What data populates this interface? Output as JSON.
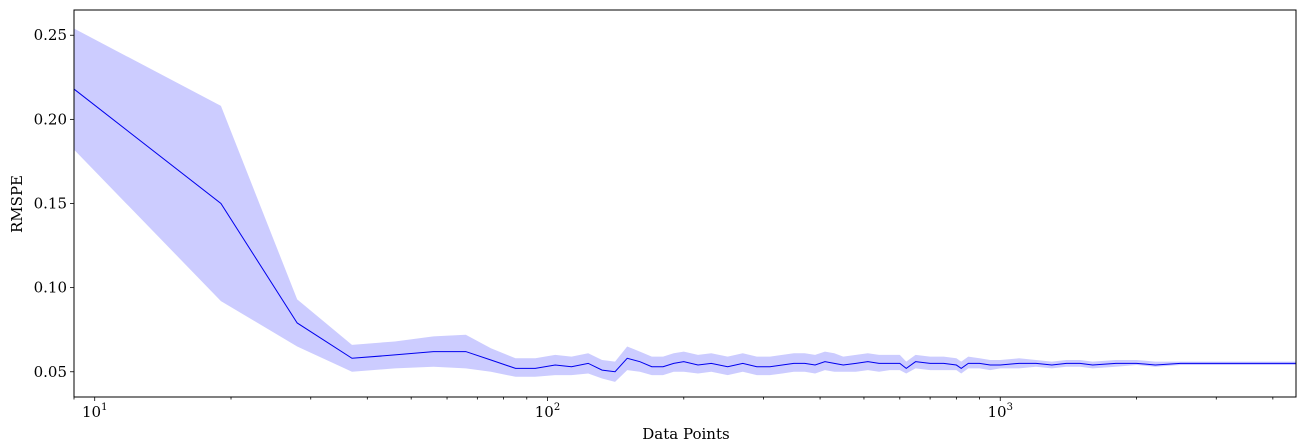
{
  "chart_data": {
    "type": "line",
    "title": "",
    "xlabel": "Data Points",
    "ylabel": "RMSPE",
    "x_scale": "log",
    "xlim": [
      9,
      4500
    ],
    "ylim": [
      0.035,
      0.265
    ],
    "grid": false,
    "legend": "none",
    "x_ticks": [
      {
        "value": 10,
        "base": "10",
        "exp": "1"
      },
      {
        "value": 100,
        "base": "10",
        "exp": "2"
      },
      {
        "value": 1000,
        "base": "10",
        "exp": "3"
      }
    ],
    "y_ticks": [
      {
        "value": 0.05,
        "label": "0.05"
      },
      {
        "value": 0.1,
        "label": "0.10"
      },
      {
        "value": 0.15,
        "label": "0.15"
      },
      {
        "value": 0.2,
        "label": "0.20"
      },
      {
        "value": 0.25,
        "label": "0.25"
      }
    ],
    "colors": {
      "line": "#0000ee",
      "band": "#ccccff"
    },
    "series": [
      {
        "x": [
          9,
          19,
          28,
          37,
          46,
          56,
          66,
          75,
          85,
          94,
          104,
          113,
          123,
          132,
          141,
          150,
          160,
          170,
          180,
          190,
          200,
          215,
          230,
          250,
          270,
          290,
          310,
          330,
          350,
          370,
          390,
          410,
          430,
          450,
          480,
          510,
          540,
          570,
          600,
          620,
          650,
          700,
          750,
          800,
          820,
          850,
          900,
          950,
          1000,
          1100,
          1200,
          1300,
          1400,
          1500,
          1600,
          1800,
          2000,
          2200,
          2500,
          2800,
          3200,
          3600,
          4000,
          4500
        ],
        "y": [
          0.218,
          0.15,
          0.079,
          0.058,
          0.06,
          0.062,
          0.062,
          0.057,
          0.052,
          0.052,
          0.054,
          0.053,
          0.055,
          0.051,
          0.05,
          0.058,
          0.056,
          0.053,
          0.053,
          0.055,
          0.056,
          0.054,
          0.055,
          0.053,
          0.055,
          0.053,
          0.053,
          0.054,
          0.055,
          0.055,
          0.054,
          0.056,
          0.055,
          0.054,
          0.055,
          0.056,
          0.055,
          0.055,
          0.055,
          0.052,
          0.056,
          0.055,
          0.055,
          0.054,
          0.052,
          0.055,
          0.055,
          0.054,
          0.054,
          0.055,
          0.055,
          0.054,
          0.055,
          0.055,
          0.054,
          0.055,
          0.055,
          0.054,
          0.055,
          0.055,
          0.055,
          0.055,
          0.055,
          0.055
        ],
        "lower": [
          0.182,
          0.092,
          0.065,
          0.05,
          0.052,
          0.053,
          0.052,
          0.05,
          0.047,
          0.047,
          0.048,
          0.048,
          0.049,
          0.046,
          0.044,
          0.051,
          0.05,
          0.048,
          0.048,
          0.05,
          0.05,
          0.049,
          0.05,
          0.048,
          0.05,
          0.048,
          0.048,
          0.049,
          0.05,
          0.05,
          0.049,
          0.051,
          0.05,
          0.05,
          0.05,
          0.051,
          0.05,
          0.051,
          0.051,
          0.049,
          0.052,
          0.051,
          0.051,
          0.051,
          0.049,
          0.052,
          0.052,
          0.051,
          0.052,
          0.052,
          0.053,
          0.052,
          0.053,
          0.053,
          0.052,
          0.053,
          0.054,
          0.053,
          0.054,
          0.054,
          0.054,
          0.054,
          0.054,
          0.054
        ],
        "upper": [
          0.254,
          0.208,
          0.093,
          0.066,
          0.068,
          0.071,
          0.072,
          0.064,
          0.058,
          0.058,
          0.06,
          0.059,
          0.061,
          0.057,
          0.056,
          0.065,
          0.062,
          0.059,
          0.059,
          0.061,
          0.062,
          0.06,
          0.061,
          0.059,
          0.061,
          0.059,
          0.059,
          0.06,
          0.061,
          0.061,
          0.06,
          0.062,
          0.061,
          0.059,
          0.06,
          0.061,
          0.06,
          0.06,
          0.06,
          0.056,
          0.06,
          0.059,
          0.059,
          0.058,
          0.056,
          0.059,
          0.058,
          0.057,
          0.057,
          0.058,
          0.057,
          0.056,
          0.057,
          0.057,
          0.056,
          0.057,
          0.057,
          0.056,
          0.056,
          0.056,
          0.056,
          0.056,
          0.056,
          0.056
        ]
      }
    ]
  }
}
